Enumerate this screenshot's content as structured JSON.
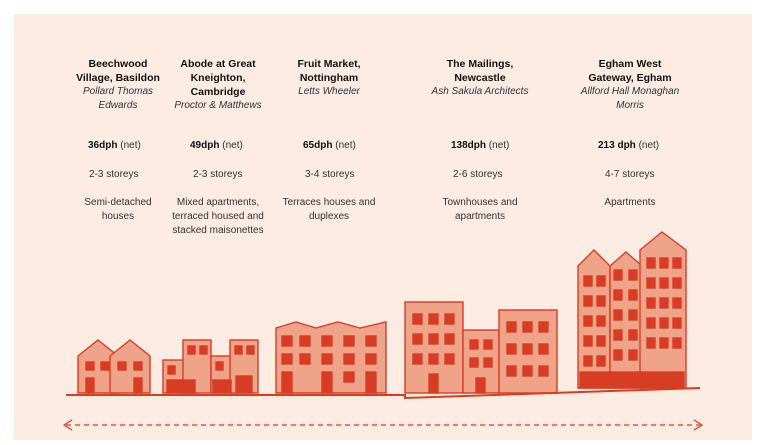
{
  "colors": {
    "background": "#fcece4",
    "fill": "#efa48a",
    "stroke": "#d83d24",
    "accent": "#d83d24"
  },
  "schemes": [
    {
      "name": "Beechwood Village, Basildon",
      "name_lines": [
        "Beechwood",
        "Village, Basildon"
      ],
      "architect_lines": [
        "Pollard Thomas",
        "Edwards"
      ],
      "density_value": "36dph",
      "density_unit": "(net)",
      "storeys": "2-3 storeys",
      "type_lines": [
        "Semi-detached",
        "houses"
      ]
    },
    {
      "name": "Abode at Great Kneighton, Cambridge",
      "name_lines": [
        "Abode at Great",
        "Kneighton,",
        "Cambridge"
      ],
      "architect_lines": [
        "Proctor & Matthews"
      ],
      "density_value": "49dph",
      "density_unit": "(net)",
      "storeys": "2-3 storeys",
      "type_lines": [
        "Mixed apartments,",
        "terraced housed and",
        "stacked maisonettes"
      ]
    },
    {
      "name": "Fruit Market, Nottingham",
      "name_lines": [
        "Fruit Market,",
        "Nottingham"
      ],
      "architect_lines": [
        "Letts Wheeler"
      ],
      "density_value": "65dph",
      "density_unit": "(net)",
      "storeys": "3-4 storeys",
      "type_lines": [
        "Terraces houses and",
        "duplexes"
      ]
    },
    {
      "name": "The Mailings, Newcastle",
      "name_lines": [
        "The Mailings,",
        "Newcastle"
      ],
      "architect_lines": [
        "Ash Sakula Architects"
      ],
      "density_value": "138dph",
      "density_unit": "(net)",
      "storeys": "2-6 storeys",
      "type_lines": [
        "Townhouses and",
        "apartments"
      ]
    },
    {
      "name": "Egham West Gateway, Egham",
      "name_lines": [
        "Egham West",
        "Gateway, Egham"
      ],
      "architect_lines": [
        "Allford Hall Monaghan",
        "Morris"
      ],
      "density_value": "213 dph",
      "density_unit": "(net)",
      "storeys": "4-7 storeys",
      "type_lines": [
        "Apartments"
      ]
    }
  ]
}
